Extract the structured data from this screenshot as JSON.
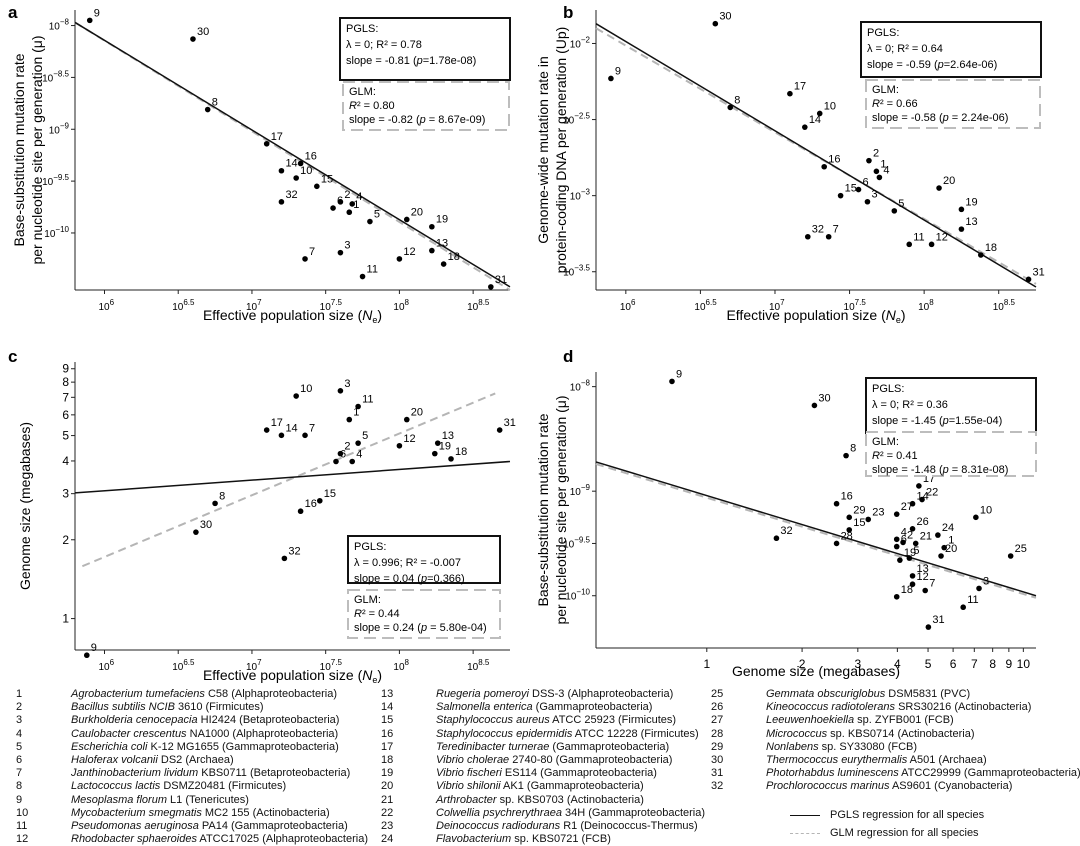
{
  "panels": [
    {
      "id": "a",
      "letter": "a",
      "xlabel_pre": "Effective population size (",
      "xlabel_var": "N",
      "xlabel_sub": "e",
      "xlabel_post": ")",
      "ylabel_lines": [
        "Base-substitution mutation rate",
        "per nucleotide site per generation (μ)"
      ],
      "x_ticks": [
        [
          "10",
          "6"
        ],
        [
          "10",
          "6.5"
        ],
        [
          "10",
          "7"
        ],
        [
          "10",
          "7.5"
        ],
        [
          "10",
          "8"
        ],
        [
          "10",
          "8.5"
        ]
      ],
      "y_ticks": [
        [
          "10",
          "−8"
        ],
        [
          "10",
          "−8.5"
        ],
        [
          "10",
          "−9"
        ],
        [
          "10",
          "−9.5"
        ],
        [
          "10",
          "−10"
        ]
      ],
      "pgls": {
        "title": "PGLS:",
        "line1": "λ = 0; R² = 0.78",
        "line2_pre": "slope = -0.81 (",
        "line2_p": "p",
        "line2_post": "=1.78e-08)"
      },
      "glm": {
        "title": "GLM:",
        "line1_var": "R",
        "line1_post": "² = 0.80",
        "line2_pre": "slope = -0.82 (",
        "line2_p": "p",
        "line2_post": " = 8.67e-09)"
      }
    },
    {
      "id": "b",
      "letter": "b",
      "xlabel_pre": "Effective population size (",
      "xlabel_var": "N",
      "xlabel_sub": "e",
      "xlabel_post": ")",
      "ylabel_lines": [
        "Genome-wide mutation rate in",
        "protein-coding DNA per generation (Up)"
      ],
      "x_ticks": [
        [
          "10",
          "6"
        ],
        [
          "10",
          "6.5"
        ],
        [
          "10",
          "7"
        ],
        [
          "10",
          "7.5"
        ],
        [
          "10",
          "8"
        ],
        [
          "10",
          "8.5"
        ]
      ],
      "y_ticks": [
        [
          "10",
          "−2"
        ],
        [
          "10",
          "−2.5"
        ],
        [
          "10",
          "−3"
        ],
        [
          "10",
          "−3.5"
        ]
      ],
      "pgls": {
        "title": "PGLS:",
        "line1": "λ = 0; R² = 0.64",
        "line2_pre": "slope = -0.59 (",
        "line2_p": "p",
        "line2_post": "=2.64e-06)"
      },
      "glm": {
        "title": "GLM:",
        "line1_var": "R",
        "line1_post": "² = 0.66",
        "line2_pre": "slope = -0.58 (",
        "line2_p": "p",
        "line2_post": " = 2.24e-06)"
      }
    },
    {
      "id": "c",
      "letter": "c",
      "xlabel_pre": "Effective population size (",
      "xlabel_var": "N",
      "xlabel_sub": "e",
      "xlabel_post": ")",
      "ylabel_lines": [
        "Genome size (megabases)"
      ],
      "x_ticks": [
        [
          "10",
          "6"
        ],
        [
          "10",
          "6.5"
        ],
        [
          "10",
          "7"
        ],
        [
          "10",
          "7.5"
        ],
        [
          "10",
          "8"
        ],
        [
          "10",
          "8.5"
        ]
      ],
      "y_ticks_plain": [
        "1",
        "2",
        "3",
        "4",
        "5",
        "6",
        "7",
        "8",
        "9"
      ],
      "pgls": {
        "title": "PGLS:",
        "line1": "λ = 0.996; R² = -0.007",
        "line2_pre": "slope = 0.04  (",
        "line2_p": "p",
        "line2_post": "=0.366)"
      },
      "glm": {
        "title": "GLM:",
        "line1_var": "R",
        "line1_post": "² = 0.44",
        "line2_pre": "slope = 0.24  (",
        "line2_p": "p",
        "line2_post": " = 5.80e-04)"
      }
    },
    {
      "id": "d",
      "letter": "d",
      "xlabel": "Genome size (megabases)",
      "ylabel_lines": [
        "Base-substitution mutation rate",
        "per nucleotide site per generation (μ)"
      ],
      "x_ticks_plain": [
        "1",
        "2",
        "3",
        "4",
        "5",
        "6",
        "7",
        "8",
        "9",
        "10"
      ],
      "y_ticks": [
        [
          "10",
          "−8"
        ],
        [
          "10",
          "−9"
        ],
        [
          "10",
          "−9.5"
        ],
        [
          "10",
          "−10"
        ]
      ],
      "pgls": {
        "title": "PGLS:",
        "line1": "λ = 0; R² = 0.36",
        "line2_pre": "slope = -1.45 (",
        "line2_p": "p",
        "line2_post": "=1.55e-04)"
      },
      "glm": {
        "title": "GLM:",
        "line1_var": "R",
        "line1_post": "² = 0.41",
        "line2_pre": "slope = -1.48 (",
        "line2_p": "p",
        "line2_post": " = 8.31e-08)"
      }
    }
  ],
  "chart_data": [
    {
      "panel": "a",
      "type": "scatter",
      "x_scale": "log10",
      "y_scale": "log10",
      "xlim": [
        5.8,
        8.75
      ],
      "ylim": [
        -10.55,
        -7.85
      ],
      "points": [
        {
          "label": "9",
          "x": 5.9,
          "y": -7.95
        },
        {
          "label": "30",
          "x": 6.6,
          "y": -8.13
        },
        {
          "label": "8",
          "x": 6.7,
          "y": -8.81
        },
        {
          "label": "17",
          "x": 7.1,
          "y": -9.14
        },
        {
          "label": "16",
          "x": 7.33,
          "y": -9.33
        },
        {
          "label": "14",
          "x": 7.2,
          "y": -9.4
        },
        {
          "label": "10",
          "x": 7.3,
          "y": -9.47
        },
        {
          "label": "15",
          "x": 7.44,
          "y": -9.55
        },
        {
          "label": "32",
          "x": 7.2,
          "y": -9.7
        },
        {
          "label": "2",
          "x": 7.6,
          "y": -9.7
        },
        {
          "label": "4",
          "x": 7.68,
          "y": -9.72
        },
        {
          "label": "6",
          "x": 7.55,
          "y": -9.76
        },
        {
          "label": "1",
          "x": 7.66,
          "y": -9.8
        },
        {
          "label": "5",
          "x": 7.8,
          "y": -9.89
        },
        {
          "label": "20",
          "x": 8.05,
          "y": -9.87
        },
        {
          "label": "19",
          "x": 8.22,
          "y": -9.94
        },
        {
          "label": "7",
          "x": 7.36,
          "y": -10.25
        },
        {
          "label": "3",
          "x": 7.6,
          "y": -10.19
        },
        {
          "label": "13",
          "x": 8.22,
          "y": -10.17
        },
        {
          "label": "12",
          "x": 8.0,
          "y": -10.25
        },
        {
          "label": "18",
          "x": 8.3,
          "y": -10.3
        },
        {
          "label": "11",
          "x": 7.75,
          "y": -10.42
        },
        {
          "label": "31",
          "x": 8.62,
          "y": -10.52
        }
      ],
      "pgls_line": {
        "x": [
          5.8,
          8.75
        ],
        "y": [
          -7.97,
          -10.52
        ]
      },
      "glm_line": {
        "x": [
          5.8,
          8.75
        ],
        "y": [
          -7.97,
          -10.55
        ]
      }
    },
    {
      "panel": "b",
      "type": "scatter",
      "x_scale": "log10",
      "y_scale": "log10",
      "xlim": [
        5.8,
        8.75
      ],
      "ylim": [
        -3.62,
        -1.78
      ],
      "points": [
        {
          "label": "30",
          "x": 6.6,
          "y": -1.87
        },
        {
          "label": "9",
          "x": 5.9,
          "y": -2.23
        },
        {
          "label": "17",
          "x": 7.1,
          "y": -2.33
        },
        {
          "label": "8",
          "x": 6.7,
          "y": -2.42
        },
        {
          "label": "10",
          "x": 7.3,
          "y": -2.46
        },
        {
          "label": "14",
          "x": 7.2,
          "y": -2.55
        },
        {
          "label": "2",
          "x": 7.63,
          "y": -2.77
        },
        {
          "label": "1",
          "x": 7.68,
          "y": -2.84
        },
        {
          "label": "16",
          "x": 7.33,
          "y": -2.81
        },
        {
          "label": "4",
          "x": 7.7,
          "y": -2.88
        },
        {
          "label": "20",
          "x": 8.1,
          "y": -2.95
        },
        {
          "label": "6",
          "x": 7.56,
          "y": -2.96
        },
        {
          "label": "15",
          "x": 7.44,
          "y": -3.0
        },
        {
          "label": "3",
          "x": 7.62,
          "y": -3.04
        },
        {
          "label": "5",
          "x": 7.8,
          "y": -3.1
        },
        {
          "label": "19",
          "x": 8.25,
          "y": -3.09
        },
        {
          "label": "13",
          "x": 8.25,
          "y": -3.22
        },
        {
          "label": "32",
          "x": 7.22,
          "y": -3.27
        },
        {
          "label": "7",
          "x": 7.36,
          "y": -3.27
        },
        {
          "label": "11",
          "x": 7.9,
          "y": -3.32
        },
        {
          "label": "12",
          "x": 8.05,
          "y": -3.32
        },
        {
          "label": "18",
          "x": 8.38,
          "y": -3.39
        },
        {
          "label": "31",
          "x": 8.7,
          "y": -3.55
        }
      ],
      "pgls_line": {
        "x": [
          5.8,
          8.75
        ],
        "y": [
          -1.87,
          -3.6
        ]
      },
      "glm_line": {
        "x": [
          5.8,
          8.75
        ],
        "y": [
          -1.9,
          -3.58
        ]
      }
    },
    {
      "panel": "c",
      "type": "scatter",
      "x_scale": "log10",
      "y_scale": "log10",
      "xlim": [
        5.8,
        8.75
      ],
      "ylim": [
        -0.12,
        0.98
      ],
      "points": [
        {
          "label": "3",
          "x": 7.6,
          "y": 0.87
        },
        {
          "label": "10",
          "x": 7.3,
          "y": 0.85
        },
        {
          "label": "11",
          "x": 7.72,
          "y": 0.81
        },
        {
          "label": "1",
          "x": 7.66,
          "y": 0.76
        },
        {
          "label": "20",
          "x": 8.05,
          "y": 0.76
        },
        {
          "label": "31",
          "x": 8.68,
          "y": 0.72
        },
        {
          "label": "17",
          "x": 7.1,
          "y": 0.72
        },
        {
          "label": "14",
          "x": 7.2,
          "y": 0.7
        },
        {
          "label": "7",
          "x": 7.36,
          "y": 0.7
        },
        {
          "label": "13",
          "x": 8.26,
          "y": 0.67
        },
        {
          "label": "5",
          "x": 7.72,
          "y": 0.67
        },
        {
          "label": "12",
          "x": 8.0,
          "y": 0.66
        },
        {
          "label": "18",
          "x": 8.35,
          "y": 0.61
        },
        {
          "label": "2",
          "x": 7.6,
          "y": 0.63
        },
        {
          "label": "19",
          "x": 8.24,
          "y": 0.63
        },
        {
          "label": "6",
          "x": 7.57,
          "y": 0.6
        },
        {
          "label": "4",
          "x": 7.68,
          "y": 0.6
        },
        {
          "label": "15",
          "x": 7.46,
          "y": 0.45
        },
        {
          "label": "8",
          "x": 6.75,
          "y": 0.44
        },
        {
          "label": "16",
          "x": 7.33,
          "y": 0.41
        },
        {
          "label": "30",
          "x": 6.62,
          "y": 0.33
        },
        {
          "label": "32",
          "x": 7.22,
          "y": 0.23
        },
        {
          "label": "9",
          "x": 5.88,
          "y": -0.14
        }
      ],
      "pgls_line": {
        "x": [
          5.8,
          8.75
        ],
        "y": [
          0.48,
          0.6
        ]
      },
      "glm_line": {
        "x": [
          5.85,
          8.65
        ],
        "y": [
          0.2,
          0.86
        ]
      }
    },
    {
      "panel": "d",
      "type": "scatter",
      "x_scale": "log10",
      "y_scale": "log10",
      "xlim": [
        -0.35,
        1.04
      ],
      "ylim": [
        -10.5,
        -7.86
      ],
      "points": [
        {
          "label": "9",
          "x": -0.11,
          "y": -7.95
        },
        {
          "label": "30",
          "x": 0.34,
          "y": -8.18
        },
        {
          "label": "8",
          "x": 0.44,
          "y": -8.66
        },
        {
          "label": "17",
          "x": 0.67,
          "y": -8.95
        },
        {
          "label": "22",
          "x": 0.68,
          "y": -9.08
        },
        {
          "label": "14",
          "x": 0.65,
          "y": -9.12
        },
        {
          "label": "16",
          "x": 0.41,
          "y": -9.12
        },
        {
          "label": "27",
          "x": 0.6,
          "y": -9.22
        },
        {
          "label": "26",
          "x": 0.65,
          "y": -9.36
        },
        {
          "label": "10",
          "x": 0.85,
          "y": -9.25
        },
        {
          "label": "29",
          "x": 0.45,
          "y": -9.25
        },
        {
          "label": "23",
          "x": 0.51,
          "y": -9.27
        },
        {
          "label": "24",
          "x": 0.73,
          "y": -9.42
        },
        {
          "label": "15",
          "x": 0.45,
          "y": -9.37
        },
        {
          "label": "32",
          "x": 0.22,
          "y": -9.45
        },
        {
          "label": "4",
          "x": 0.6,
          "y": -9.46
        },
        {
          "label": "2",
          "x": 0.62,
          "y": -9.49
        },
        {
          "label": "21",
          "x": 0.66,
          "y": -9.5
        },
        {
          "label": "28",
          "x": 0.41,
          "y": -9.5
        },
        {
          "label": "6",
          "x": 0.6,
          "y": -9.53
        },
        {
          "label": "1",
          "x": 0.75,
          "y": -9.54
        },
        {
          "label": "25",
          "x": 0.96,
          "y": -9.62
        },
        {
          "label": "19",
          "x": 0.61,
          "y": -9.66
        },
        {
          "label": "5",
          "x": 0.64,
          "y": -9.64
        },
        {
          "label": "20",
          "x": 0.74,
          "y": -9.62
        },
        {
          "label": "13",
          "x": 0.65,
          "y": -9.81
        },
        {
          "label": "12",
          "x": 0.65,
          "y": -9.89
        },
        {
          "label": "7",
          "x": 0.69,
          "y": -9.95
        },
        {
          "label": "18",
          "x": 0.6,
          "y": -10.01
        },
        {
          "label": "3",
          "x": 0.86,
          "y": -9.93
        },
        {
          "label": "11",
          "x": 0.81,
          "y": -10.11
        },
        {
          "label": "31",
          "x": 0.7,
          "y": -10.3
        }
      ],
      "pgls_line": {
        "x": [
          -0.35,
          1.04
        ],
        "y": [
          -8.72,
          -10.0
        ]
      },
      "glm_line": {
        "x": [
          -0.35,
          1.04
        ],
        "y": [
          -8.74,
          -10.02
        ]
      }
    }
  ],
  "species_legend": [
    {
      "n": "1",
      "italic": "Agrobacterium tumefaciens",
      "rest": " C58 (Alphaproteobacteria)"
    },
    {
      "n": "2",
      "italic": "Bacillus subtilis NCIB",
      "rest": " 3610 (Firmicutes)"
    },
    {
      "n": "3",
      "italic": "Burkholderia cenocepacia",
      "rest": " HI2424 (Betaproteobacteria)"
    },
    {
      "n": "4",
      "italic": "Caulobacter crescentus",
      "rest": " NA1000 (Alphaproteobacteria)"
    },
    {
      "n": "5",
      "italic": "Escherichia coli",
      "rest": " K-12 MG1655 (Gammaproteobacteria)"
    },
    {
      "n": "6",
      "italic": "Haloferax volcanii",
      "rest": " DS2 (Archaea)"
    },
    {
      "n": "7",
      "italic": "Janthinobacterium lividum",
      "rest": " KBS0711 (Betaproteobacteria)"
    },
    {
      "n": "8",
      "italic": "Lactococcus lactis",
      "rest": " DSMZ20481 (Firmicutes)"
    },
    {
      "n": "9",
      "italic": "Mesoplasma florum",
      "rest": " L1 (Tenericutes)"
    },
    {
      "n": "10",
      "italic": "Mycobacterium smegmatis",
      "rest": " MC2 155 (Actinobacteria)"
    },
    {
      "n": "11",
      "italic": "Pseudomonas aeruginosa",
      "rest": " PA14 (Gammaproteobacteria)"
    },
    {
      "n": "12",
      "italic": "Rhodobacter sphaeroides",
      "rest": " ATCC17025 (Alphaproteobacteria)"
    },
    {
      "n": "13",
      "italic": "Ruegeria pomeroyi",
      "rest": " DSS-3 (Alphaproteobacteria)"
    },
    {
      "n": "14",
      "italic": "Salmonella enterica",
      "rest": " (Gammaproteobacteria)"
    },
    {
      "n": "15",
      "italic": "Staphylococcus aureus",
      "rest": " ATCC 25923 (Firmicutes)"
    },
    {
      "n": "16",
      "italic": "Staphylococcus epidermidis",
      "rest": " ATCC 12228 (Firmicutes)"
    },
    {
      "n": "17",
      "italic": "Teredinibacter turnerae",
      "rest": " (Gammaproteobacteria)"
    },
    {
      "n": "18",
      "italic": "Vibrio cholerae",
      "rest": " 2740-80 (Gammaproteobacteria)"
    },
    {
      "n": "19",
      "italic": "Vibrio fischeri",
      "rest": " ES114 (Gammaproteobacteria)"
    },
    {
      "n": "20",
      "italic": "Vibrio shilonii",
      "rest": " AK1 (Gammaproteobacteria)"
    },
    {
      "n": "21",
      "italic": "Arthrobacter",
      "rest": " sp. KBS0703 (Actinobacteria)"
    },
    {
      "n": "22",
      "italic": "Colwellia psychrerythraea",
      "rest": " 34H (Gammaproteobacteria)"
    },
    {
      "n": "23",
      "italic": "Deinococcus radiodurans",
      "rest": " R1 (Deinococcus-Thermus)"
    },
    {
      "n": "24",
      "italic": "Flavobacterium",
      "rest": " sp. KBS0721 (FCB)"
    },
    {
      "n": "25",
      "italic": "Gemmata obscuriglobus",
      "rest": " DSM5831 (PVC)"
    },
    {
      "n": "26",
      "italic": "Kineococcus radiotolerans",
      "rest": " SRS30216 (Actinobacteria)"
    },
    {
      "n": "27",
      "italic": "Leeuwenhoekiella",
      "rest": " sp. ZYFB001 (FCB)"
    },
    {
      "n": "28",
      "italic": "Micrococcus",
      "rest": " sp. KBS0714 (Actinobacteria)"
    },
    {
      "n": "29",
      "italic": "Nonlabens",
      "rest": " sp. SY33080 (FCB)"
    },
    {
      "n": "30",
      "italic": "Thermococcus eurythermalis",
      "rest": " A501 (Archaea)"
    },
    {
      "n": "31",
      "italic": "Photorhabdus luminescens",
      "rest": " ATCC29999  (Gammaproteobacteria)"
    },
    {
      "n": "32",
      "italic": "Prochlorococcus marinus",
      "rest": " AS9601 (Cyanobacteria)"
    }
  ],
  "regression_key": {
    "pgls": "PGLS regression for all species",
    "glm": "GLM regression for all species"
  },
  "colors": {
    "pgls_line": "#111111",
    "glm_line": "#b5b5b5",
    "points": "#000000",
    "glm_box": "#bdbdbd"
  }
}
